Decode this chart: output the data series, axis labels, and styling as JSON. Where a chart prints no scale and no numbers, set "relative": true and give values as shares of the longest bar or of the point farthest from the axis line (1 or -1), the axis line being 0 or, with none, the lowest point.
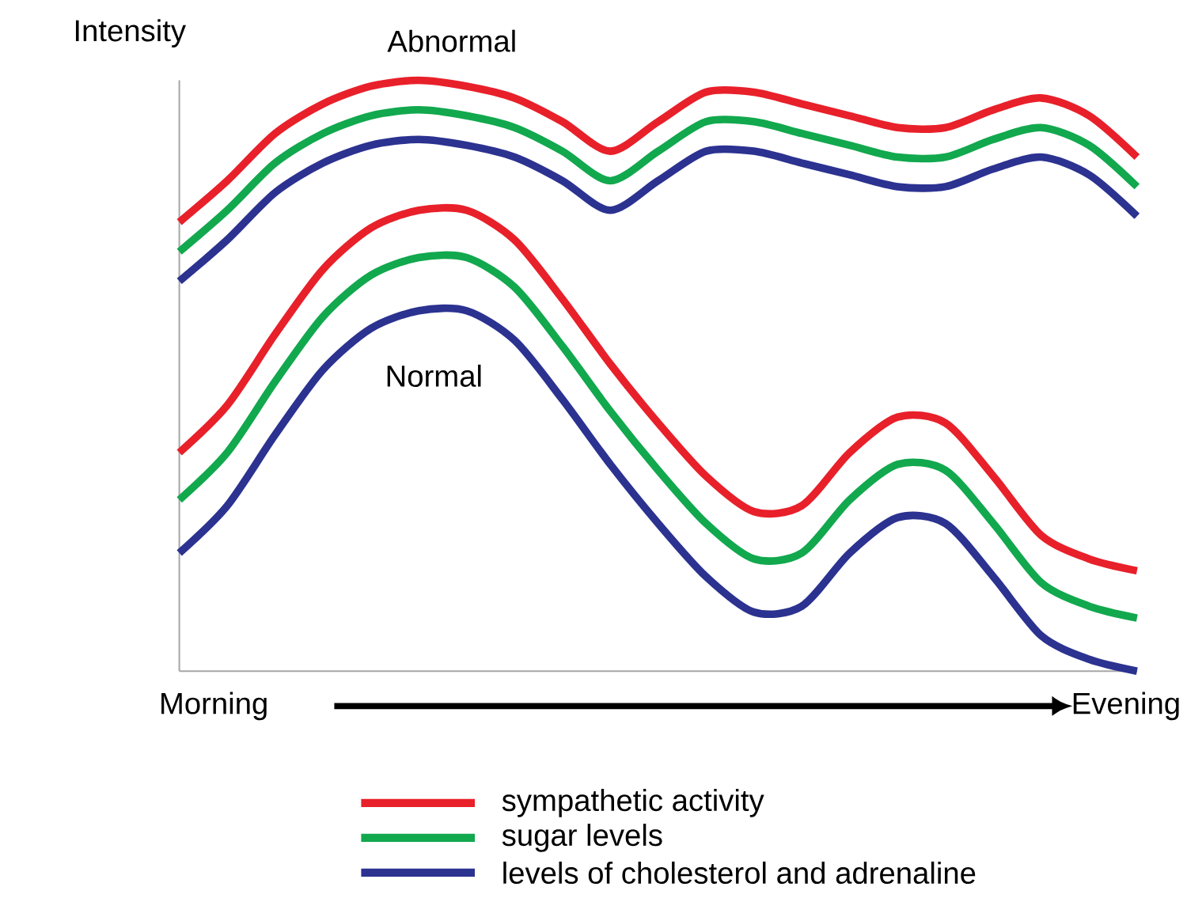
{
  "chart_data": {
    "type": "line",
    "relative": true,
    "ylabel": "Intensity",
    "legend": "bottom",
    "annotations": [
      "Abnormal",
      "Normal",
      "Morning",
      "Evening"
    ],
    "categories": [
      null,
      null,
      null,
      null,
      null,
      null,
      null,
      null,
      null,
      null,
      null,
      null,
      null,
      null,
      null,
      null,
      null,
      null,
      null,
      null,
      null
    ],
    "series": [
      {
        "name": "sympathetic activity",
        "color": "#e8202a",
        "values": [
          0.76,
          0.83,
          0.91,
          0.96,
          0.99,
          1.0,
          0.99,
          0.97,
          0.93,
          0.88,
          0.93,
          0.98,
          0.98,
          0.96,
          0.94,
          0.92,
          0.92,
          0.95,
          0.97,
          0.94,
          0.87
        ]
      },
      {
        "name": "sugar levels",
        "color": "#12a84e",
        "values": [
          0.71,
          0.78,
          0.86,
          0.91,
          0.94,
          0.95,
          0.94,
          0.92,
          0.88,
          0.83,
          0.88,
          0.93,
          0.93,
          0.91,
          0.89,
          0.87,
          0.87,
          0.9,
          0.92,
          0.89,
          0.82
        ]
      },
      {
        "name": "levels of cholesterol and adrenaline",
        "color": "#2b3290",
        "values": [
          0.66,
          0.73,
          0.81,
          0.86,
          0.89,
          0.9,
          0.89,
          0.87,
          0.83,
          0.78,
          0.83,
          0.88,
          0.88,
          0.86,
          0.84,
          0.82,
          0.82,
          0.85,
          0.87,
          0.84,
          0.77
        ]
      },
      {
        "color": "#e8202a",
        "values": [
          0.37,
          0.45,
          0.57,
          0.68,
          0.75,
          0.78,
          0.78,
          0.73,
          0.63,
          0.52,
          0.42,
          0.33,
          0.27,
          0.28,
          0.37,
          0.43,
          0.42,
          0.33,
          0.23,
          0.19,
          0.17
        ]
      },
      {
        "color": "#12a84e",
        "values": [
          0.29,
          0.37,
          0.49,
          0.6,
          0.67,
          0.7,
          0.7,
          0.65,
          0.55,
          0.44,
          0.34,
          0.25,
          0.19,
          0.2,
          0.29,
          0.35,
          0.34,
          0.25,
          0.15,
          0.11,
          0.09
        ]
      },
      {
        "color": "#2b3290",
        "values": [
          0.2,
          0.28,
          0.4,
          0.51,
          0.58,
          0.61,
          0.61,
          0.56,
          0.46,
          0.35,
          0.25,
          0.16,
          0.1,
          0.11,
          0.2,
          0.26,
          0.25,
          0.16,
          0.06,
          0.02,
          0.0
        ]
      }
    ]
  }
}
